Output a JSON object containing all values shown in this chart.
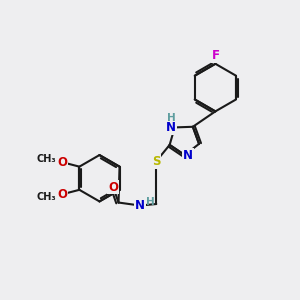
{
  "bg_color": "#eeeef0",
  "bond_color": "#1a1a1a",
  "bond_width": 1.5,
  "atom_colors": {
    "C": "#1a1a1a",
    "N": "#0000cc",
    "O": "#cc0000",
    "S": "#b8b800",
    "F": "#cc00cc",
    "H": "#5f9ea0"
  },
  "font_size": 8.5,
  "small_font": 7.5,
  "tiny_font": 7.0
}
